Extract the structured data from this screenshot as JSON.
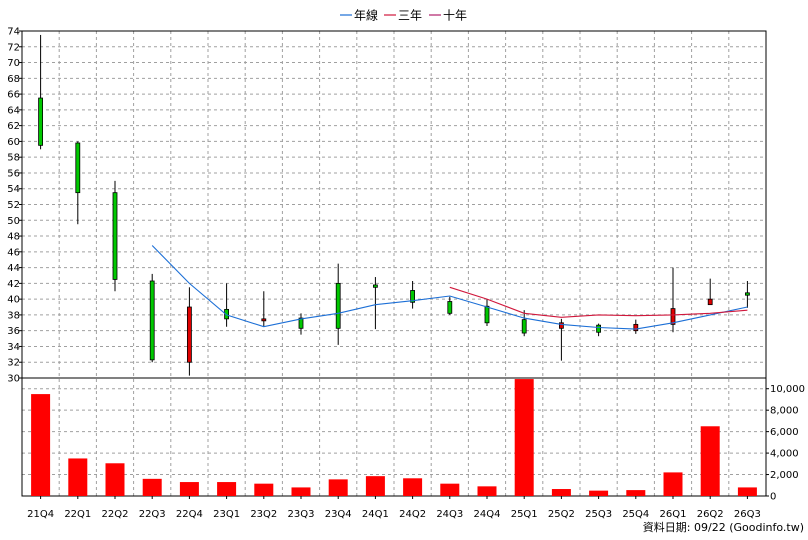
{
  "legend": {
    "items": [
      {
        "label": "年線",
        "color": "#1c6fd6"
      },
      {
        "label": "三年",
        "color": "#d0183c"
      },
      {
        "label": "十年",
        "color": "#b0206c"
      }
    ]
  },
  "source_note": "資料日期: 09/22 (Goodinfo.tw)",
  "colors": {
    "up_candle": "#00c800",
    "down_candle": "#e00000",
    "volume_bar": "#ff0000",
    "grid": "#a0a0a0"
  },
  "chart_data": [
    {
      "type": "candlestick",
      "ylim": [
        30,
        74
      ],
      "yticks": [
        30,
        32,
        34,
        36,
        38,
        40,
        42,
        44,
        46,
        48,
        50,
        52,
        54,
        56,
        58,
        60,
        62,
        64,
        66,
        68,
        70,
        72,
        74
      ],
      "categories": [
        "21Q4",
        "22Q1",
        "22Q2",
        "22Q3",
        "22Q4",
        "23Q1",
        "23Q2",
        "23Q3",
        "23Q4",
        "24Q1",
        "24Q2",
        "24Q3",
        "24Q4",
        "25Q1",
        "25Q2",
        "25Q3",
        "25Q4",
        "26Q1",
        "26Q2",
        "26Q3"
      ],
      "candles": [
        {
          "open": 59.5,
          "high": 73.5,
          "low": 59.0,
          "close": 65.5
        },
        {
          "open": 53.5,
          "high": 60.0,
          "low": 49.5,
          "close": 59.8
        },
        {
          "open": 42.5,
          "high": 55.0,
          "low": 41.0,
          "close": 53.5
        },
        {
          "open": 32.3,
          "high": 43.2,
          "low": 32.0,
          "close": 42.3
        },
        {
          "open": 39.0,
          "high": 41.5,
          "low": 30.3,
          "close": 32.0
        },
        {
          "open": 37.5,
          "high": 42.0,
          "low": 36.5,
          "close": 38.7
        },
        {
          "open": 37.5,
          "high": 41.0,
          "low": 36.5,
          "close": 37.4
        },
        {
          "open": 36.3,
          "high": 38.2,
          "low": 35.5,
          "close": 37.6
        },
        {
          "open": 36.3,
          "high": 44.5,
          "low": 34.2,
          "close": 42.0
        },
        {
          "open": 41.5,
          "high": 42.8,
          "low": 36.2,
          "close": 41.8
        },
        {
          "open": 39.6,
          "high": 42.3,
          "low": 38.8,
          "close": 41.1
        },
        {
          "open": 38.2,
          "high": 40.3,
          "low": 38.0,
          "close": 39.7
        },
        {
          "open": 37.0,
          "high": 40.0,
          "low": 36.6,
          "close": 39.1
        },
        {
          "open": 35.7,
          "high": 38.6,
          "low": 35.3,
          "close": 37.4
        },
        {
          "open": 37.0,
          "high": 37.5,
          "low": 32.2,
          "close": 36.3
        },
        {
          "open": 35.8,
          "high": 36.9,
          "low": 35.3,
          "close": 36.7
        },
        {
          "open": 36.8,
          "high": 37.4,
          "low": 35.6,
          "close": 36.0
        },
        {
          "open": 38.8,
          "high": 44.0,
          "low": 35.8,
          "close": 36.8
        },
        {
          "open": 40.0,
          "high": 42.6,
          "low": 39.3,
          "close": 39.3
        },
        {
          "open": 40.5,
          "high": 42.3,
          "low": 38.9,
          "close": 40.8
        }
      ],
      "series": [
        {
          "name": "年線",
          "values": [
            null,
            null,
            null,
            46.8,
            42.0,
            38.0,
            36.5,
            37.5,
            38.2,
            39.3,
            39.8,
            40.4,
            39.0,
            37.6,
            36.8,
            36.4,
            36.2,
            37.0,
            38.0,
            39.0
          ]
        },
        {
          "name": "三年",
          "values": [
            null,
            null,
            null,
            null,
            null,
            null,
            null,
            null,
            null,
            null,
            null,
            41.5,
            40.0,
            38.2,
            37.7,
            38.0,
            37.9,
            38.0,
            38.2,
            38.6
          ]
        },
        {
          "name": "十年",
          "values": [
            null,
            null,
            null,
            null,
            null,
            null,
            null,
            null,
            null,
            null,
            null,
            null,
            null,
            null,
            null,
            null,
            null,
            null,
            null,
            null
          ]
        }
      ]
    },
    {
      "type": "bar",
      "ylim": [
        0,
        11000
      ],
      "yticks": [
        0,
        2000,
        4000,
        6000,
        8000,
        10000
      ],
      "ytick_labels": [
        "0",
        "2,000",
        "4,000",
        "6,000",
        "8,000",
        "10,000"
      ],
      "categories": [
        "21Q4",
        "22Q1",
        "22Q2",
        "22Q3",
        "22Q4",
        "23Q1",
        "23Q2",
        "23Q3",
        "23Q4",
        "24Q1",
        "24Q2",
        "24Q3",
        "24Q4",
        "25Q1",
        "25Q2",
        "25Q3",
        "25Q4",
        "26Q1",
        "26Q2",
        "26Q3"
      ],
      "values": [
        9500,
        3500,
        3050,
        1600,
        1300,
        1300,
        1150,
        800,
        1550,
        1850,
        1650,
        1150,
        900,
        10900,
        650,
        500,
        550,
        2200,
        6500,
        800
      ]
    }
  ]
}
